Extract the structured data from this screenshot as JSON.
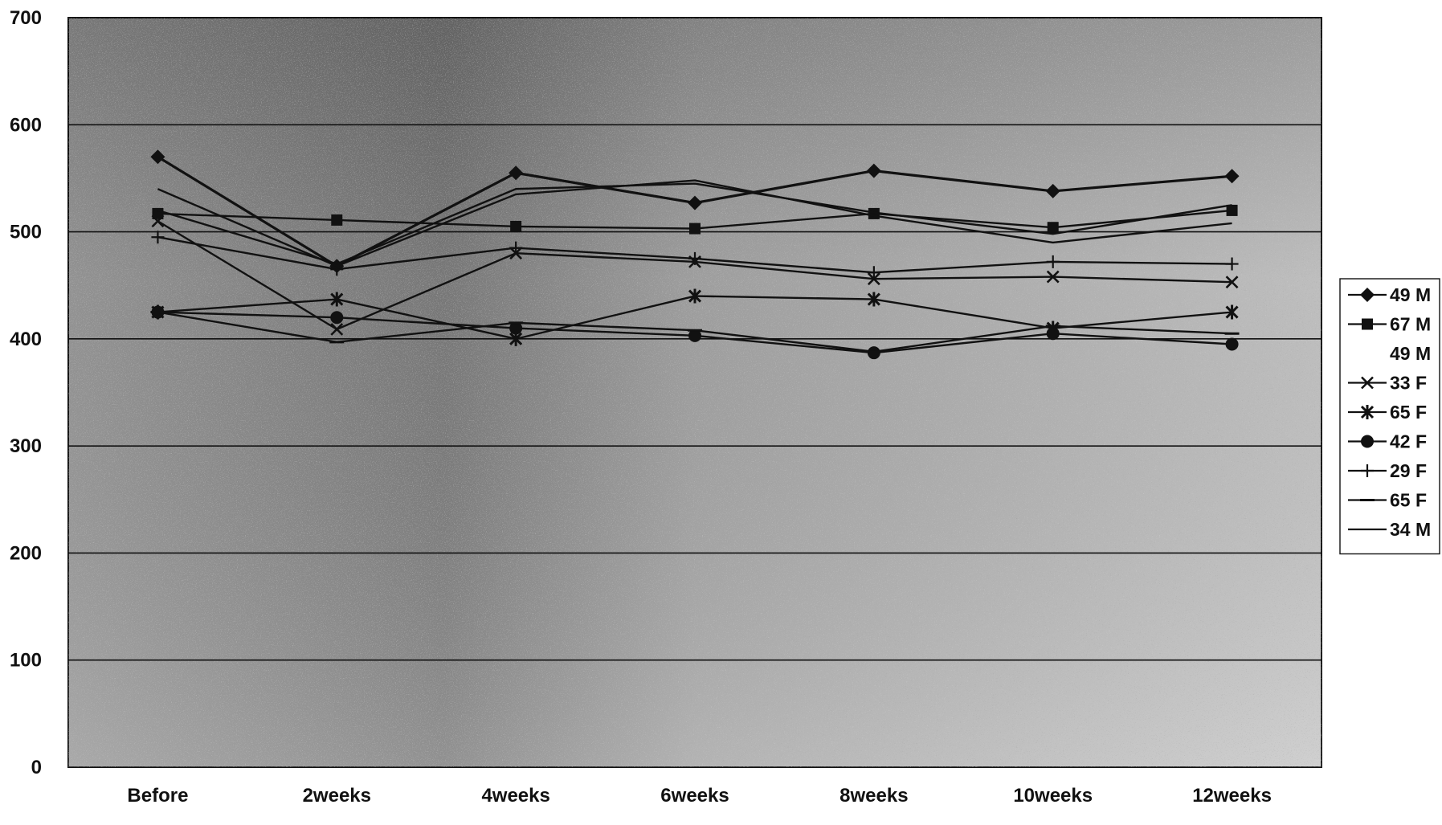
{
  "colors": {
    "plot_background": "#bdbdbd",
    "plot_background_dark": "#8a8a8a",
    "line": "#111111",
    "gridline": "#111111",
    "legend_background": "#ffffff"
  },
  "chart_data": {
    "type": "line",
    "categories": [
      "Before",
      "2weeks",
      "4weeks",
      "6weeks",
      "8weeks",
      "10weeks",
      "12weeks"
    ],
    "ylim": [
      0,
      700
    ],
    "yticks": [
      0,
      100,
      200,
      300,
      400,
      500,
      600,
      700
    ],
    "grid": true,
    "legend_position": "right",
    "series": [
      {
        "name": "49 M",
        "marker": "diamond",
        "values": [
          570,
          468,
          555,
          527,
          557,
          538,
          552
        ]
      },
      {
        "name": "67 M",
        "marker": "square",
        "values": [
          517,
          511,
          505,
          503,
          517,
          504,
          520
        ]
      },
      {
        "name": "49 M",
        "marker": "none",
        "values": [
          520,
          470,
          540,
          545,
          518,
          498,
          525
        ]
      },
      {
        "name": "33 F",
        "marker": "x",
        "values": [
          510,
          409,
          480,
          472,
          456,
          458,
          453
        ]
      },
      {
        "name": "65 F",
        "marker": "star",
        "values": [
          425,
          437,
          400,
          440,
          437,
          410,
          425
        ]
      },
      {
        "name": "42 F",
        "marker": "circle",
        "values": [
          425,
          420,
          410,
          403,
          387,
          405,
          395
        ]
      },
      {
        "name": "29 F",
        "marker": "plus",
        "values": [
          495,
          465,
          485,
          475,
          462,
          472,
          470
        ]
      },
      {
        "name": "65 F",
        "marker": "dash",
        "values": [
          425,
          397,
          415,
          408,
          388,
          412,
          405
        ]
      },
      {
        "name": "34 M",
        "marker": "none",
        "values": [
          540,
          468,
          535,
          548,
          515,
          490,
          508
        ]
      }
    ]
  }
}
